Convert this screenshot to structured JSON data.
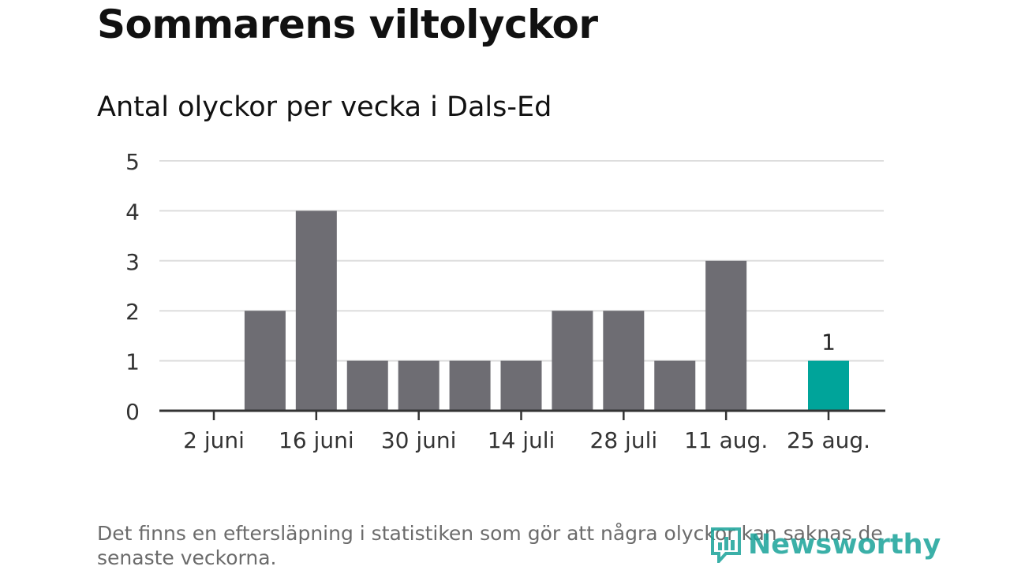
{
  "header": {
    "title": "Sommarens viltolyckor",
    "subtitle": "Antal olyckor per vecka i Dals-Ed"
  },
  "footer": {
    "note": "Det finns en eftersläpning i statistiken som gör att några olyckor kan saknas de senaste veckorna.",
    "brand": "Newsworthy"
  },
  "colors": {
    "bar": "#6e6d73",
    "highlight": "#00a49a",
    "grid": "#dddddd",
    "axis": "#333333"
  },
  "chart_data": {
    "type": "bar",
    "title": "Antal olyckor per vecka i Dals-Ed",
    "xlabel": "",
    "ylabel": "",
    "ylim": [
      0,
      5
    ],
    "yticks": [
      "0",
      "1",
      "2",
      "3",
      "4",
      "5"
    ],
    "x_tick_labels": [
      "2 juni",
      "16 juni",
      "30 juni",
      "14 juli",
      "28 juli",
      "11 aug.",
      "25 aug."
    ],
    "values": [
      0,
      2,
      4,
      1,
      1,
      1,
      1,
      2,
      2,
      1,
      3,
      0,
      1
    ],
    "highlight_index": 12,
    "data_labels": [
      {
        "index": 12,
        "text": "1"
      }
    ],
    "grid": true,
    "legend": "none"
  }
}
